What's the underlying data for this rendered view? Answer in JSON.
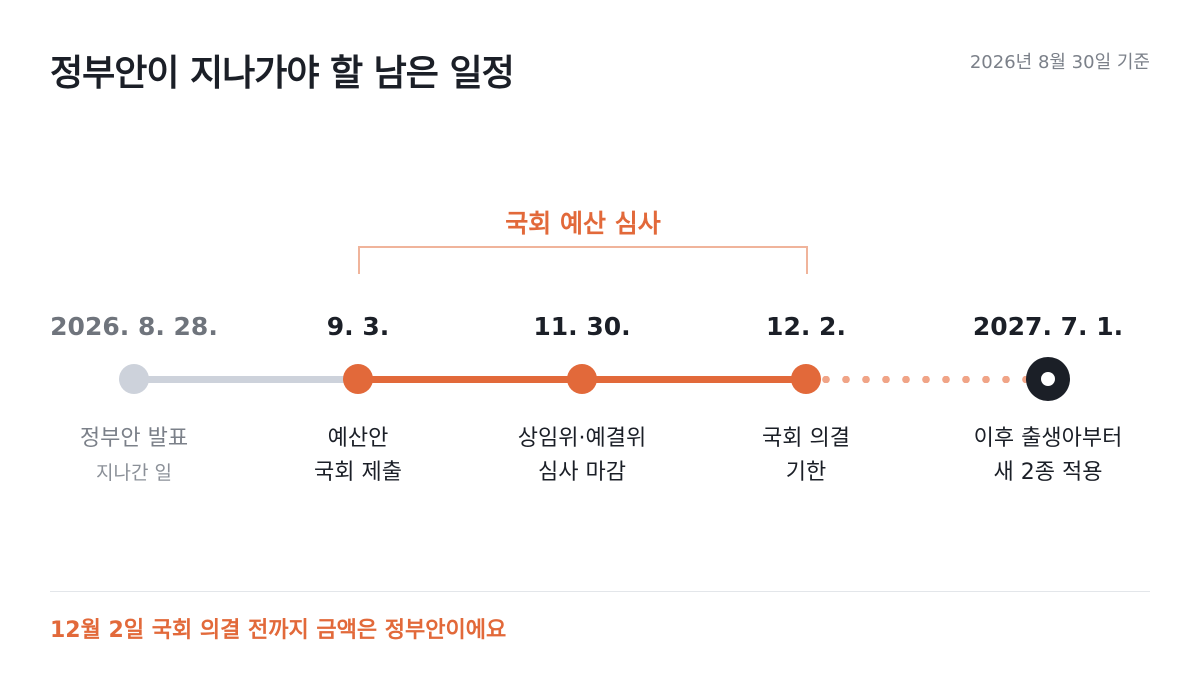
{
  "header": {
    "title": "정부안이 지나가야 할 남은 일정",
    "as_of": "2026년 8월 30일 기준"
  },
  "range": {
    "label": "국회 예산 심사"
  },
  "milestones": [
    {
      "date": "2026. 8. 28.",
      "line1": "정부안 발표",
      "line2": "지나간 일",
      "state": "past"
    },
    {
      "date": "9. 3.",
      "line1": "예산안",
      "line2": "국회 제출",
      "state": "active"
    },
    {
      "date": "11. 30.",
      "line1": "상임위·예결위",
      "line2": "심사 마감",
      "state": "active"
    },
    {
      "date": "12. 2.",
      "line1": "국회 의결",
      "line2": "기한",
      "state": "active"
    },
    {
      "date": "2027. 7. 1.",
      "line1": "이후 출생아부터",
      "line2": "새 2종 적용",
      "state": "future"
    }
  ],
  "footer": {
    "note": "12월 2일 국회 의결 전까지 금액은 정부안이에요"
  },
  "colors": {
    "accent": "#e2693a",
    "past": "#cdd2db",
    "text": "#1b1f27"
  }
}
